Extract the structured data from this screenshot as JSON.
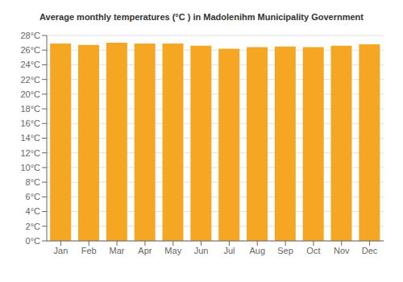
{
  "chart_data": {
    "type": "bar",
    "title": "Average monthly temperatures (°C ) in Madolenihm Municipality Government",
    "categories": [
      "Jan",
      "Feb",
      "Mar",
      "Apr",
      "May",
      "Jun",
      "Jul",
      "Aug",
      "Sep",
      "Oct",
      "Nov",
      "Dec"
    ],
    "values": [
      26.9,
      26.7,
      27.0,
      26.9,
      26.9,
      26.6,
      26.2,
      26.4,
      26.5,
      26.4,
      26.6,
      26.8
    ],
    "color": "#F5A623",
    "ylim": [
      0,
      28
    ],
    "yticks": [
      {
        "value": 0,
        "label": "0°C"
      },
      {
        "value": 2,
        "label": "2°C"
      },
      {
        "value": 4,
        "label": "4°C"
      },
      {
        "value": 6,
        "label": "6°C"
      },
      {
        "value": 8,
        "label": "8°C"
      },
      {
        "value": 10,
        "label": "10°C"
      },
      {
        "value": 12,
        "label": "12°C"
      },
      {
        "value": 14,
        "label": "14°C"
      },
      {
        "value": 16,
        "label": "16°C"
      },
      {
        "value": 18,
        "label": "18°C"
      },
      {
        "value": 20,
        "label": "20°C"
      },
      {
        "value": 22,
        "label": "22°C"
      },
      {
        "value": 24,
        "label": "24°C"
      },
      {
        "value": 26,
        "label": "26°C"
      },
      {
        "value": 28,
        "label": "28°C"
      }
    ],
    "grid": true
  }
}
